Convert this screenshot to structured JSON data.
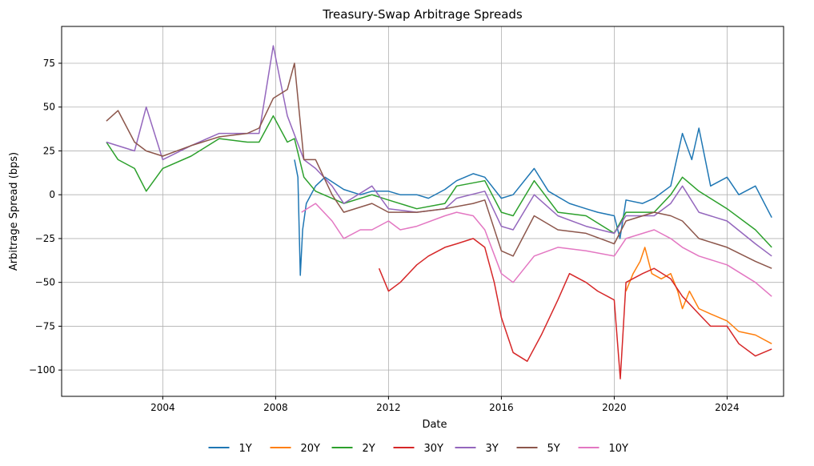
{
  "chart_data": {
    "type": "line",
    "title": "Treasury-Swap Arbitrage Spreads",
    "xlabel": "Date",
    "ylabel": "Arbitrage Spread (bps)",
    "xlim": [
      "2000-06-01",
      "2026-01-01"
    ],
    "ylim": [
      -115,
      96
    ],
    "x_ticks": [
      {
        "date": "2004-01-01",
        "label": "2004"
      },
      {
        "date": "2008-01-01",
        "label": "2008"
      },
      {
        "date": "2012-01-01",
        "label": "2012"
      },
      {
        "date": "2016-01-01",
        "label": "2016"
      },
      {
        "date": "2020-01-01",
        "label": "2020"
      },
      {
        "date": "2024-01-01",
        "label": "2024"
      }
    ],
    "y_ticks": [
      {
        "value": 75,
        "label": "75"
      },
      {
        "value": 50,
        "label": "50"
      },
      {
        "value": 25,
        "label": "25"
      },
      {
        "value": 0,
        "label": "0"
      },
      {
        "value": -25,
        "label": "−25"
      },
      {
        "value": -50,
        "label": "−50"
      },
      {
        "value": -75,
        "label": "−75"
      },
      {
        "value": -100,
        "label": "−100"
      }
    ],
    "grid": true,
    "legend_position": "bottom-center",
    "series": [
      {
        "name": "1Y",
        "color": "#1f77b4",
        "points": [
          [
            "2008-09-01",
            20
          ],
          [
            "2008-10-15",
            10
          ],
          [
            "2008-11-15",
            -46
          ],
          [
            "2008-12-15",
            -20
          ],
          [
            "2009-02-01",
            -5
          ],
          [
            "2009-06-01",
            5
          ],
          [
            "2009-10-01",
            10
          ],
          [
            "2010-06-01",
            3
          ],
          [
            "2011-01-01",
            0
          ],
          [
            "2011-06-01",
            2
          ],
          [
            "2012-01-01",
            2
          ],
          [
            "2012-06-01",
            0
          ],
          [
            "2013-01-01",
            0
          ],
          [
            "2013-06-01",
            -2
          ],
          [
            "2014-01-01",
            3
          ],
          [
            "2014-06-01",
            8
          ],
          [
            "2015-01-01",
            12
          ],
          [
            "2015-06-01",
            10
          ],
          [
            "2016-01-01",
            -2
          ],
          [
            "2016-06-01",
            0
          ],
          [
            "2017-03-01",
            15
          ],
          [
            "2017-09-01",
            2
          ],
          [
            "2018-06-01",
            -5
          ],
          [
            "2019-01-01",
            -8
          ],
          [
            "2019-06-01",
            -10
          ],
          [
            "2020-01-01",
            -12
          ],
          [
            "2020-03-15",
            -25
          ],
          [
            "2020-06-01",
            -3
          ],
          [
            "2021-01-01",
            -5
          ],
          [
            "2021-06-01",
            -2
          ],
          [
            "2022-01-01",
            5
          ],
          [
            "2022-06-01",
            35
          ],
          [
            "2022-10-01",
            20
          ],
          [
            "2023-01-01",
            38
          ],
          [
            "2023-06-01",
            5
          ],
          [
            "2024-01-01",
            10
          ],
          [
            "2024-06-01",
            0
          ],
          [
            "2025-01-01",
            5
          ],
          [
            "2025-08-01",
            -13
          ]
        ]
      },
      {
        "name": "20Y",
        "color": "#ff7f0e",
        "points": [
          [
            "2020-06-01",
            -55
          ],
          [
            "2020-09-01",
            -45
          ],
          [
            "2020-12-01",
            -38
          ],
          [
            "2021-02-01",
            -30
          ],
          [
            "2021-05-01",
            -45
          ],
          [
            "2021-09-01",
            -48
          ],
          [
            "2022-01-01",
            -45
          ],
          [
            "2022-04-01",
            -55
          ],
          [
            "2022-06-01",
            -65
          ],
          [
            "2022-09-01",
            -55
          ],
          [
            "2023-01-01",
            -65
          ],
          [
            "2023-06-01",
            -68
          ],
          [
            "2024-01-01",
            -72
          ],
          [
            "2024-06-01",
            -78
          ],
          [
            "2025-01-01",
            -80
          ],
          [
            "2025-08-01",
            -85
          ]
        ]
      },
      {
        "name": "2Y",
        "color": "#2ca02c",
        "points": [
          [
            "2002-01-01",
            30
          ],
          [
            "2002-06-01",
            20
          ],
          [
            "2003-01-01",
            15
          ],
          [
            "2003-06-01",
            2
          ],
          [
            "2004-01-01",
            15
          ],
          [
            "2005-01-01",
            22
          ],
          [
            "2006-01-01",
            32
          ],
          [
            "2007-01-01",
            30
          ],
          [
            "2007-06-01",
            30
          ],
          [
            "2007-12-01",
            45
          ],
          [
            "2008-06-01",
            30
          ],
          [
            "2008-09-01",
            32
          ],
          [
            "2009-01-01",
            10
          ],
          [
            "2009-06-01",
            2
          ],
          [
            "2010-06-01",
            -5
          ],
          [
            "2011-06-01",
            0
          ],
          [
            "2012-01-01",
            -3
          ],
          [
            "2013-01-01",
            -8
          ],
          [
            "2014-01-01",
            -5
          ],
          [
            "2014-06-01",
            5
          ],
          [
            "2015-06-01",
            8
          ],
          [
            "2016-01-01",
            -10
          ],
          [
            "2016-06-01",
            -12
          ],
          [
            "2017-03-01",
            8
          ],
          [
            "2018-01-01",
            -10
          ],
          [
            "2019-01-01",
            -12
          ],
          [
            "2020-01-01",
            -22
          ],
          [
            "2020-06-01",
            -10
          ],
          [
            "2021-06-01",
            -10
          ],
          [
            "2022-01-01",
            0
          ],
          [
            "2022-06-01",
            10
          ],
          [
            "2023-01-01",
            2
          ],
          [
            "2024-01-01",
            -8
          ],
          [
            "2025-01-01",
            -20
          ],
          [
            "2025-08-01",
            -30
          ]
        ]
      },
      {
        "name": "30Y",
        "color": "#d62728",
        "points": [
          [
            "2011-09-01",
            -42
          ],
          [
            "2012-01-01",
            -55
          ],
          [
            "2012-06-01",
            -50
          ],
          [
            "2013-01-01",
            -40
          ],
          [
            "2013-06-01",
            -35
          ],
          [
            "2014-01-01",
            -30
          ],
          [
            "2014-06-01",
            -28
          ],
          [
            "2015-01-01",
            -25
          ],
          [
            "2015-06-01",
            -30
          ],
          [
            "2015-10-01",
            -50
          ],
          [
            "2016-01-01",
            -70
          ],
          [
            "2016-06-01",
            -90
          ],
          [
            "2016-12-01",
            -95
          ],
          [
            "2017-06-01",
            -80
          ],
          [
            "2018-01-01",
            -60
          ],
          [
            "2018-06-01",
            -45
          ],
          [
            "2019-01-01",
            -50
          ],
          [
            "2019-06-01",
            -55
          ],
          [
            "2020-01-01",
            -60
          ],
          [
            "2020-03-20",
            -105
          ],
          [
            "2020-06-01",
            -50
          ],
          [
            "2021-01-01",
            -45
          ],
          [
            "2021-06-01",
            -42
          ],
          [
            "2022-01-01",
            -48
          ],
          [
            "2022-06-01",
            -58
          ],
          [
            "2023-01-01",
            -68
          ],
          [
            "2023-06-01",
            -75
          ],
          [
            "2024-01-01",
            -75
          ],
          [
            "2024-06-01",
            -85
          ],
          [
            "2025-01-01",
            -92
          ],
          [
            "2025-08-01",
            -88
          ]
        ]
      },
      {
        "name": "3Y",
        "color": "#9467bd",
        "points": [
          [
            "2002-01-01",
            30
          ],
          [
            "2003-01-01",
            25
          ],
          [
            "2003-06-01",
            50
          ],
          [
            "2004-01-01",
            20
          ],
          [
            "2005-01-01",
            28
          ],
          [
            "2006-01-01",
            35
          ],
          [
            "2007-01-01",
            35
          ],
          [
            "2007-06-01",
            35
          ],
          [
            "2007-12-01",
            85
          ],
          [
            "2008-06-01",
            45
          ],
          [
            "2009-01-01",
            20
          ],
          [
            "2009-06-01",
            15
          ],
          [
            "2010-01-01",
            5
          ],
          [
            "2010-06-01",
            -5
          ],
          [
            "2011-06-01",
            5
          ],
          [
            "2012-01-01",
            -8
          ],
          [
            "2013-01-01",
            -10
          ],
          [
            "2014-01-01",
            -8
          ],
          [
            "2014-06-01",
            -2
          ],
          [
            "2015-06-01",
            2
          ],
          [
            "2016-01-01",
            -18
          ],
          [
            "2016-06-01",
            -20
          ],
          [
            "2017-03-01",
            0
          ],
          [
            "2018-01-01",
            -12
          ],
          [
            "2019-01-01",
            -18
          ],
          [
            "2020-01-01",
            -22
          ],
          [
            "2020-06-01",
            -12
          ],
          [
            "2021-06-01",
            -12
          ],
          [
            "2022-01-01",
            -5
          ],
          [
            "2022-06-01",
            5
          ],
          [
            "2023-01-01",
            -10
          ],
          [
            "2024-01-01",
            -15
          ],
          [
            "2025-01-01",
            -28
          ],
          [
            "2025-08-01",
            -35
          ]
        ]
      },
      {
        "name": "5Y",
        "color": "#8c564b",
        "points": [
          [
            "2002-01-01",
            42
          ],
          [
            "2002-06-01",
            48
          ],
          [
            "2003-01-01",
            30
          ],
          [
            "2003-06-01",
            25
          ],
          [
            "2004-01-01",
            22
          ],
          [
            "2005-01-01",
            28
          ],
          [
            "2006-01-01",
            33
          ],
          [
            "2007-01-01",
            35
          ],
          [
            "2007-06-01",
            38
          ],
          [
            "2007-12-01",
            55
          ],
          [
            "2008-06-01",
            60
          ],
          [
            "2008-09-01",
            75
          ],
          [
            "2009-01-01",
            20
          ],
          [
            "2009-06-01",
            20
          ],
          [
            "2010-01-01",
            0
          ],
          [
            "2010-06-01",
            -10
          ],
          [
            "2011-06-01",
            -5
          ],
          [
            "2012-01-01",
            -10
          ],
          [
            "2013-01-01",
            -10
          ],
          [
            "2014-01-01",
            -8
          ],
          [
            "2015-01-01",
            -5
          ],
          [
            "2015-06-01",
            -3
          ],
          [
            "2016-01-01",
            -32
          ],
          [
            "2016-06-01",
            -35
          ],
          [
            "2017-03-01",
            -12
          ],
          [
            "2018-01-01",
            -20
          ],
          [
            "2019-01-01",
            -22
          ],
          [
            "2020-01-01",
            -28
          ],
          [
            "2020-06-01",
            -15
          ],
          [
            "2021-06-01",
            -10
          ],
          [
            "2022-01-01",
            -12
          ],
          [
            "2022-06-01",
            -15
          ],
          [
            "2023-01-01",
            -25
          ],
          [
            "2024-01-01",
            -30
          ],
          [
            "2025-01-01",
            -38
          ],
          [
            "2025-08-01",
            -42
          ]
        ]
      },
      {
        "name": "10Y",
        "color": "#e377c2",
        "points": [
          [
            "2008-12-01",
            -10
          ],
          [
            "2009-06-01",
            -5
          ],
          [
            "2010-01-01",
            -15
          ],
          [
            "2010-06-01",
            -25
          ],
          [
            "2011-01-01",
            -20
          ],
          [
            "2011-06-01",
            -20
          ],
          [
            "2012-01-01",
            -15
          ],
          [
            "2012-06-01",
            -20
          ],
          [
            "2013-01-01",
            -18
          ],
          [
            "2014-01-01",
            -12
          ],
          [
            "2014-06-01",
            -10
          ],
          [
            "2015-01-01",
            -12
          ],
          [
            "2015-06-01",
            -20
          ],
          [
            "2016-01-01",
            -45
          ],
          [
            "2016-06-01",
            -50
          ],
          [
            "2017-03-01",
            -35
          ],
          [
            "2018-01-01",
            -30
          ],
          [
            "2019-01-01",
            -32
          ],
          [
            "2020-01-01",
            -35
          ],
          [
            "2020-06-01",
            -25
          ],
          [
            "2021-06-01",
            -20
          ],
          [
            "2022-01-01",
            -25
          ],
          [
            "2022-06-01",
            -30
          ],
          [
            "2023-01-01",
            -35
          ],
          [
            "2024-01-01",
            -40
          ],
          [
            "2025-01-01",
            -50
          ],
          [
            "2025-08-01",
            -58
          ]
        ]
      }
    ]
  }
}
